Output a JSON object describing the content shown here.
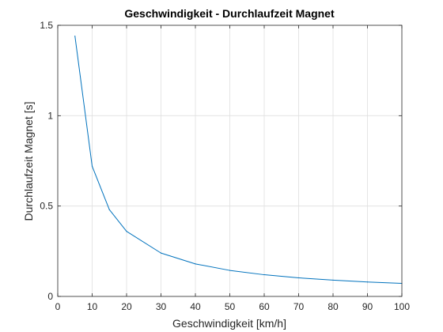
{
  "chart_data": {
    "type": "line",
    "title": "Geschwindigkeit - Durchlaufzeit Magnet",
    "xlabel": "Geschwindigkeit [km/h]",
    "ylabel": "Durchlaufzeit Magnet [s]",
    "xlim": [
      0,
      100
    ],
    "ylim": [
      0,
      1.5
    ],
    "xticks": [
      0,
      10,
      20,
      30,
      40,
      50,
      60,
      70,
      80,
      90,
      100
    ],
    "xtick_labels": [
      "0",
      "10",
      "20",
      "30",
      "40",
      "50",
      "60",
      "70",
      "80",
      "90",
      "100"
    ],
    "yticks": [
      0,
      0.5,
      1,
      1.5
    ],
    "ytick_labels": [
      "0",
      "0.5",
      "1",
      "1.5"
    ],
    "grid": true,
    "line_color": "#0072BD",
    "series": [
      {
        "x": [
          5,
          10,
          15,
          20,
          30,
          40,
          50,
          60,
          70,
          80,
          90,
          100
        ],
        "y": [
          1.44,
          0.72,
          0.48,
          0.36,
          0.24,
          0.18,
          0.144,
          0.12,
          0.103,
          0.09,
          0.08,
          0.072
        ]
      }
    ]
  }
}
